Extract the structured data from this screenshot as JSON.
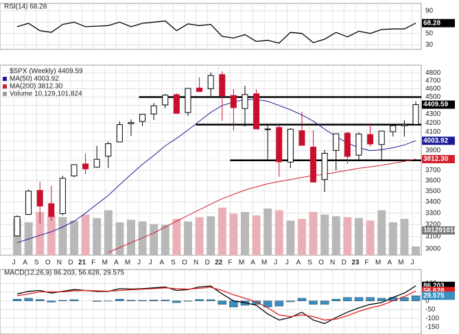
{
  "chart_data": [
    {
      "type": "line",
      "title": "RSI(14) 68.28",
      "series": [
        {
          "color": "#000000",
          "values": [
            62,
            68,
            55,
            52,
            66,
            70,
            62,
            63,
            64,
            70,
            62,
            68,
            70,
            72,
            55,
            67,
            64,
            66,
            45,
            42,
            48,
            36,
            38,
            33,
            52,
            50,
            34,
            40,
            52,
            44,
            54,
            50,
            57,
            58,
            58,
            68.28
          ]
        }
      ],
      "ylim": [
        22,
        103
      ],
      "yticks": [
        30,
        50,
        70,
        90
      ],
      "grid": true
    },
    {
      "type": "candlestick",
      "title": "$SPX (Weekly) 4409.59",
      "categories": [
        "J",
        "A",
        "S",
        "O",
        "N",
        "D",
        "21",
        "F",
        "M",
        "A",
        "M",
        "J",
        "J",
        "A",
        "S",
        "O",
        "N",
        "D",
        "22",
        "F",
        "M",
        "A",
        "M",
        "J",
        "J",
        "A",
        "S",
        "O",
        "N",
        "D",
        "23",
        "F",
        "M",
        "A",
        "M",
        "J"
      ],
      "open": [
        3105,
        3289,
        3507,
        3385,
        3296,
        3645,
        3764,
        3731,
        3842,
        3992,
        4191,
        4216,
        4301,
        4406,
        4529,
        4317,
        4610,
        4602,
        4778,
        4519,
        4364,
        4540,
        4130,
        4149,
        3782,
        4113,
        3937,
        3610,
        3902,
        4087,
        3853,
        4071,
        3964,
        4102,
        4167,
        4183
      ],
      "high": [
        3280,
        3514,
        3588,
        3550,
        3646,
        3760,
        3870,
        3950,
        3994,
        4218,
        4238,
        4302,
        4429,
        4538,
        4546,
        4608,
        4744,
        4808,
        4819,
        4595,
        4637,
        4594,
        4170,
        4178,
        4140,
        4325,
        4120,
        3906,
        4080,
        4101,
        4095,
        4195,
        4110,
        4170,
        4231,
        4448
      ],
      "low": [
        3101,
        3284,
        3209,
        3233,
        3279,
        3633,
        3662,
        3725,
        3723,
        3992,
        4056,
        4164,
        4233,
        4367,
        4306,
        4279,
        4560,
        4495,
        4223,
        4115,
        4157,
        4129,
        3811,
        3637,
        3722,
        3955,
        3585,
        3492,
        3699,
        3765,
        3795,
        3943,
        3809,
        4049,
        4048,
        4180
      ],
      "close": [
        3271,
        3500,
        3363,
        3270,
        3622,
        3756,
        3714,
        3811,
        3973,
        4181,
        4204,
        4298,
        4395,
        4523,
        4308,
        4605,
        4567,
        4766,
        4516,
        4374,
        4530,
        4132,
        4132,
        3785,
        4130,
        3955,
        3586,
        3872,
        4080,
        3840,
        4077,
        3970,
        4109,
        4169,
        4180,
        4409.59
      ],
      "series": [
        {
          "name": "MA(50) 4003.92",
          "color": "#1c1c96",
          "values": [
            3050,
            3080,
            3110,
            3140,
            3180,
            3230,
            3300,
            3380,
            3460,
            3560,
            3660,
            3760,
            3850,
            3950,
            4030,
            4120,
            4220,
            4320,
            4400,
            4440,
            4470,
            4470,
            4450,
            4400,
            4350,
            4290,
            4220,
            4130,
            4050,
            3980,
            3930,
            3900,
            3910,
            3930,
            3960,
            4003.92
          ]
        },
        {
          "name": "MA(200) 3812.30",
          "color": "#d0202c",
          "values": [
            null,
            null,
            null,
            null,
            null,
            null,
            null,
            null,
            2970,
            3010,
            3050,
            3090,
            3130,
            3180,
            3230,
            3280,
            3330,
            3380,
            3430,
            3470,
            3510,
            3540,
            3570,
            3590,
            3610,
            3630,
            3650,
            3660,
            3680,
            3700,
            3720,
            3735,
            3750,
            3770,
            3790,
            3812.3
          ],
          "value_labels": [
            null,
            null,
            null,
            null,
            null,
            null,
            null,
            null,
            null,
            null,
            null,
            null,
            null,
            null,
            null,
            null,
            null,
            null,
            null,
            null,
            null,
            null,
            null,
            null,
            null,
            null,
            null,
            null,
            null,
            null,
            null,
            null,
            null,
            null,
            null,
            "3812.30"
          ]
        }
      ],
      "volume": {
        "name": "Volume 10,129,101,824",
        "values": [
          42000000000,
          38000000000,
          50000000000,
          46000000000,
          44000000000,
          40000000000,
          47000000000,
          43000000000,
          52000000000,
          38000000000,
          41000000000,
          39000000000,
          36000000000,
          35000000000,
          42000000000,
          39000000000,
          44000000000,
          45000000000,
          55000000000,
          48000000000,
          50000000000,
          46000000000,
          54000000000,
          52000000000,
          40000000000,
          42000000000,
          50000000000,
          47000000000,
          45000000000,
          44000000000,
          43000000000,
          40000000000,
          52000000000,
          38000000000,
          42000000000,
          10129101824
        ]
      },
      "volume_ylim": [
        0,
        220000000000
      ],
      "levels": [
        {
          "value": 4500,
          "start": 11
        },
        {
          "value": 4180,
          "start": 16
        },
        {
          "value": 3800,
          "start": 19
        }
      ],
      "ylim": [
        2950,
        4900
      ],
      "log": true,
      "yticks": [
        3000,
        3100,
        3200,
        3300,
        3400,
        3500,
        3600,
        3700,
        3800,
        3900,
        4000,
        4100,
        4200,
        4300,
        4400,
        4500,
        4600,
        4700,
        4800
      ],
      "grid": true
    },
    {
      "type": "line",
      "title": "MACD(12,26,9) 86.203, 56.628, 29.575",
      "series": [
        {
          "color": "#000000",
          "values": [
            40,
            55,
            60,
            45,
            55,
            65,
            60,
            55,
            55,
            70,
            68,
            70,
            75,
            80,
            60,
            65,
            80,
            85,
            40,
            0,
            -10,
            -25,
            -75,
            -110,
            -95,
            -65,
            -110,
            -130,
            -95,
            -65,
            -40,
            -20,
            -10,
            20,
            45,
            86.203
          ]
        },
        {
          "color": "#e02020",
          "values": [
            30,
            40,
            52,
            52,
            52,
            58,
            60,
            58,
            56,
            60,
            64,
            67,
            70,
            75,
            70,
            67,
            72,
            78,
            60,
            35,
            15,
            -5,
            -40,
            -80,
            -90,
            -80,
            -90,
            -110,
            -105,
            -85,
            -60,
            -40,
            -25,
            0,
            25,
            56.628
          ]
        },
        {
          "color": "#3a8fc0",
          "style": "bar",
          "values": [
            10,
            15,
            8,
            -7,
            3,
            7,
            0,
            -3,
            -1,
            10,
            4,
            3,
            5,
            5,
            -10,
            -2,
            8,
            7,
            -20,
            -35,
            -25,
            -20,
            -35,
            -30,
            -5,
            15,
            -20,
            -20,
            10,
            20,
            20,
            20,
            15,
            20,
            20,
            29.575
          ]
        }
      ],
      "ylim": [
        -190,
        180
      ],
      "yticks": [
        100,
        50,
        0,
        -50,
        -100,
        -150
      ],
      "grid": true
    }
  ]
}
